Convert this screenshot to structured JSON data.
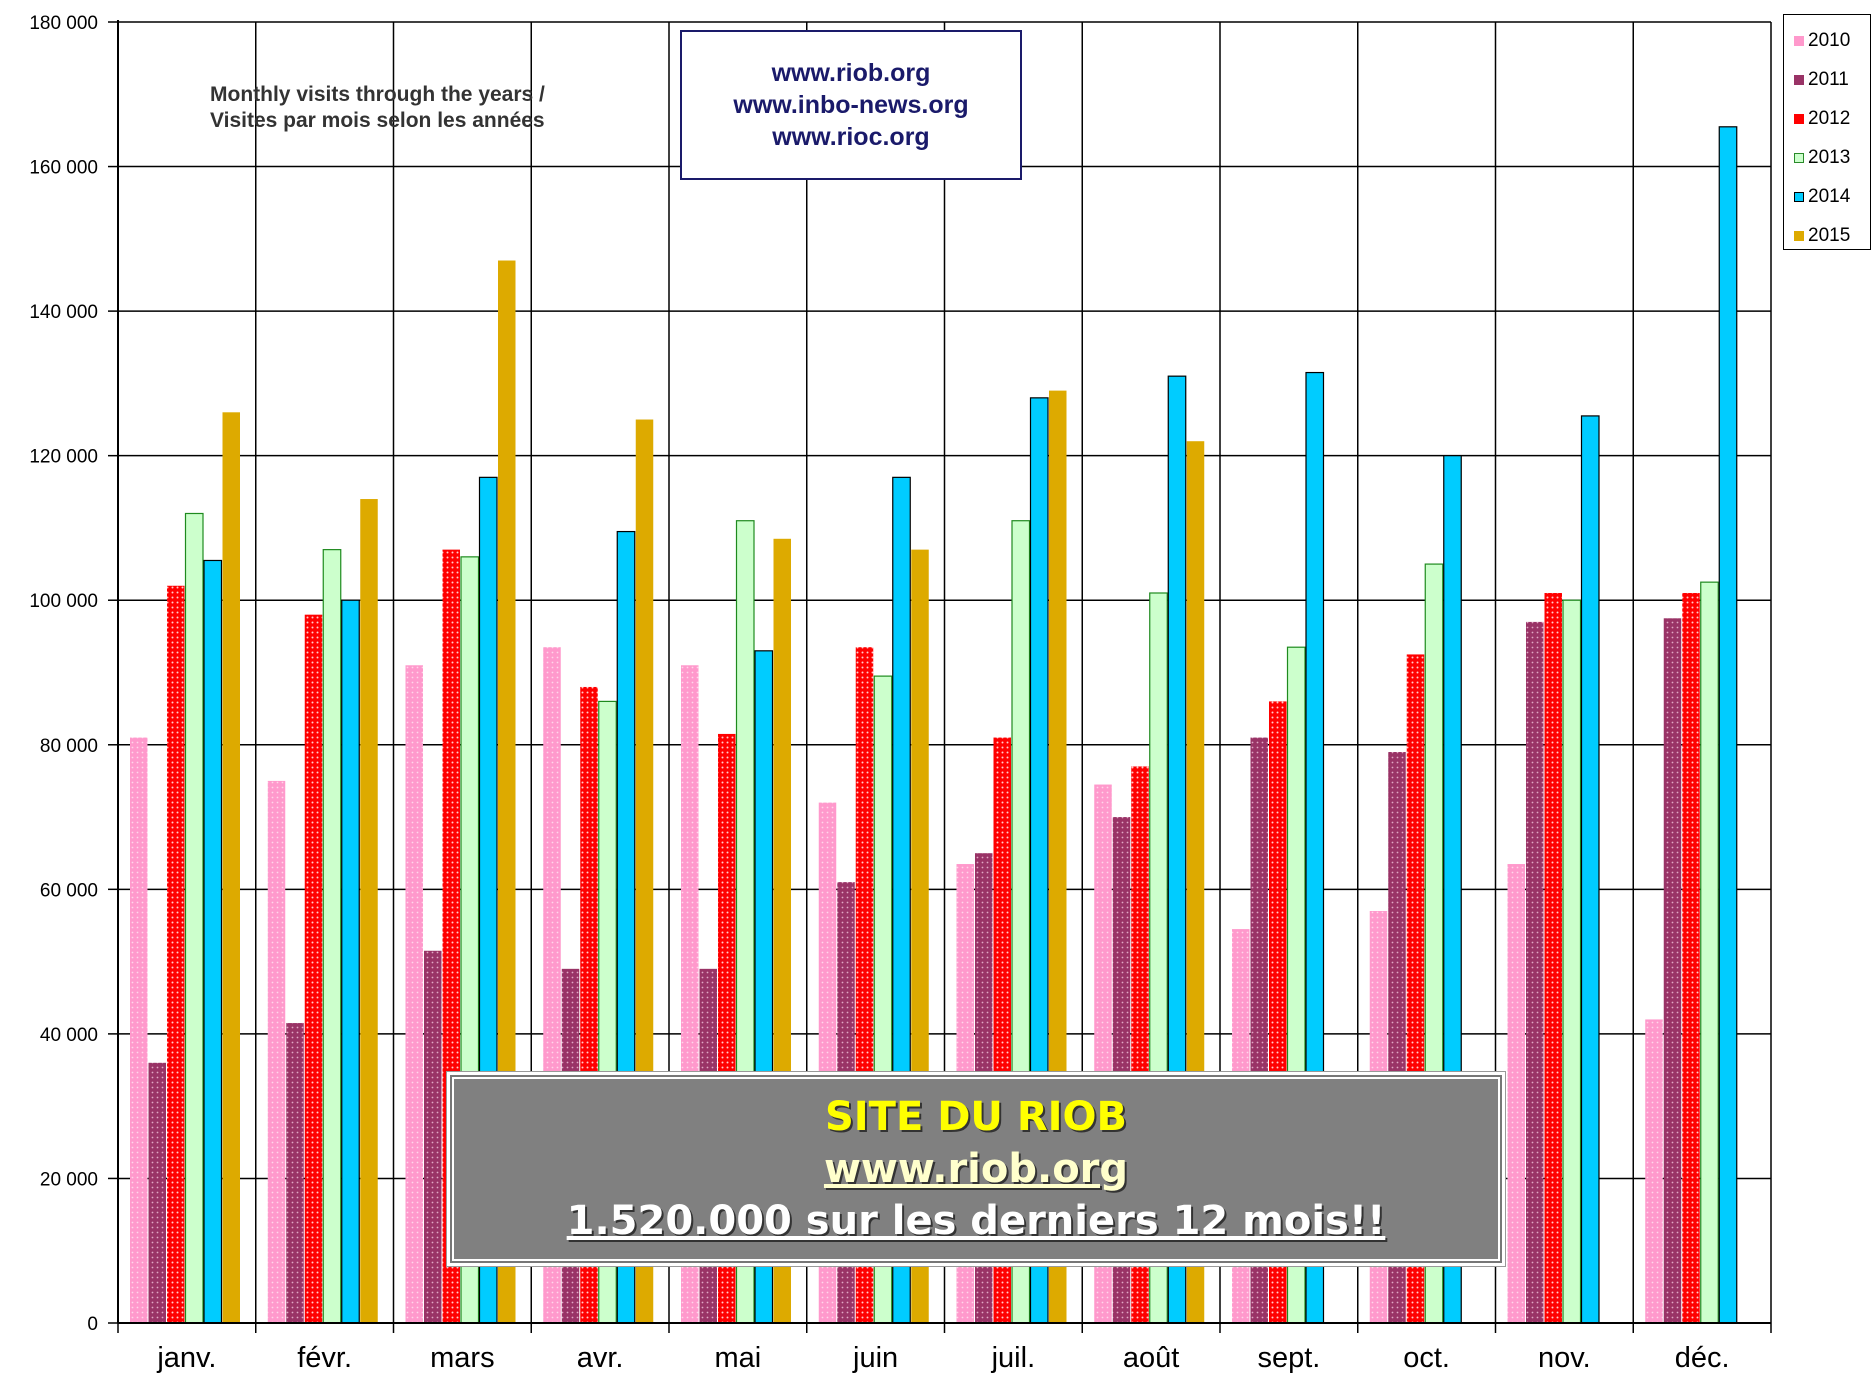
{
  "chart_data": {
    "type": "bar",
    "title": "Monthly visits through the years / Visites par mois selon les années",
    "categories": [
      "janv.",
      "févr.",
      "mars",
      "avr.",
      "mai",
      "juin",
      "juil.",
      "août",
      "sept.",
      "oct.",
      "nov.",
      "déc."
    ],
    "ylim": [
      0,
      180000
    ],
    "yticks": [
      "0",
      "20 000",
      "40 000",
      "60 000",
      "80 000",
      "100 000",
      "120 000",
      "140 000",
      "160 000",
      "180 000"
    ],
    "ytick_values": [
      0,
      20000,
      40000,
      60000,
      80000,
      100000,
      120000,
      140000,
      160000,
      180000
    ],
    "grid": true,
    "legend_position": "top-right",
    "series": [
      {
        "name": "2010",
        "color": "#ff99cc",
        "values": [
          81000,
          75000,
          91000,
          93500,
          91000,
          72000,
          63500,
          74500,
          54500,
          57000,
          63500,
          42000
        ]
      },
      {
        "name": "2011",
        "color": "#993366",
        "values": [
          36000,
          41500,
          51500,
          49000,
          49000,
          61000,
          65000,
          70000,
          81000,
          79000,
          97000,
          97500
        ]
      },
      {
        "name": "2012",
        "color": "#ff0000",
        "values": [
          102000,
          98000,
          107000,
          88000,
          81500,
          93500,
          81000,
          77000,
          86000,
          92500,
          101000,
          101000
        ]
      },
      {
        "name": "2013",
        "color": "#ccffcc",
        "values": [
          112000,
          107000,
          106000,
          86000,
          111000,
          89500,
          111000,
          101000,
          93500,
          105000,
          100000,
          102500
        ]
      },
      {
        "name": "2014",
        "color": "#00ccff",
        "values": [
          105500,
          100000,
          117000,
          109500,
          93000,
          117000,
          128000,
          131000,
          131500,
          120000,
          125500,
          165500
        ]
      },
      {
        "name": "2015",
        "color": "#ddaa00",
        "values": [
          126000,
          114000,
          147000,
          125000,
          108500,
          107000,
          129000,
          122000,
          null,
          null,
          null,
          null
        ]
      }
    ]
  },
  "subtitle_lines": [
    "Monthly visits through the years /",
    "Visites par mois selon les années"
  ],
  "url_box": {
    "line1": "www.riob.org",
    "line2": "www.inbo-news.org",
    "line3": "www.rioc.org"
  },
  "overlay": {
    "line1": "SITE DU RIOB",
    "line2": "www.riob.org",
    "line3": "1.520.000 sur les derniers 12 mois!!"
  }
}
